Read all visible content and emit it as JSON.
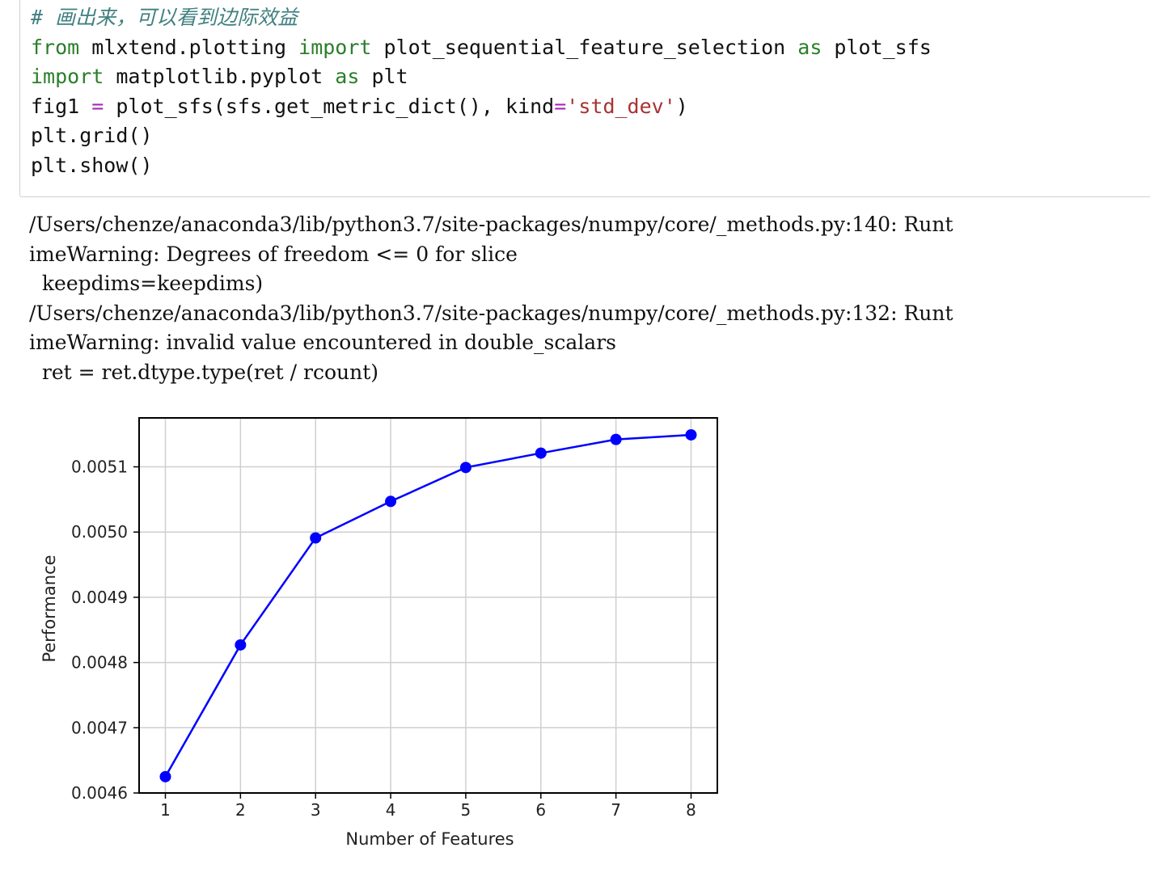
{
  "code_cell": {
    "lines": [
      [
        {
          "t": "# 画出来，可以看到边际效益",
          "c": "comment"
        }
      ],
      [
        {
          "t": "from",
          "c": "kw"
        },
        {
          "t": " mlxtend.plotting ",
          "c": ""
        },
        {
          "t": "import",
          "c": "kw"
        },
        {
          "t": " plot_sequential_feature_selection ",
          "c": ""
        },
        {
          "t": "as",
          "c": "kw"
        },
        {
          "t": " plot_sfs",
          "c": ""
        }
      ],
      [
        {
          "t": "import",
          "c": "kw"
        },
        {
          "t": " matplotlib.pyplot ",
          "c": ""
        },
        {
          "t": "as",
          "c": "kw"
        },
        {
          "t": " plt",
          "c": ""
        }
      ],
      [
        {
          "t": "fig1 ",
          "c": ""
        },
        {
          "t": "=",
          "c": "op"
        },
        {
          "t": " plot_sfs(sfs.get_metric_dict(), kind",
          "c": ""
        },
        {
          "t": "=",
          "c": "op"
        },
        {
          "t": "'std_dev'",
          "c": "str"
        },
        {
          "t": ")",
          "c": ""
        }
      ],
      [
        {
          "t": "plt.grid()",
          "c": ""
        }
      ],
      [
        {
          "t": "plt.show()",
          "c": ""
        }
      ]
    ]
  },
  "output": {
    "lines": [
      "/Users/chenze/anaconda3/lib/python3.7/site-packages/numpy/core/_methods.py:140: Runt",
      "imeWarning: Degrees of freedom <= 0 for slice",
      "  keepdims=keepdims)",
      "/Users/chenze/anaconda3/lib/python3.7/site-packages/numpy/core/_methods.py:132: Runt",
      "imeWarning: invalid value encountered in double_scalars",
      "  ret = ret.dtype.type(ret / rcount)"
    ]
  },
  "chart_data": {
    "type": "line",
    "x": [
      1,
      2,
      3,
      4,
      5,
      6,
      7,
      8
    ],
    "series": [
      {
        "values": [
          0.004625,
          0.004827,
          0.004991,
          0.005047,
          0.005099,
          0.005121,
          0.005142,
          0.005149
        ]
      }
    ],
    "xlabel": "Number of Features",
    "ylabel": "Performance",
    "xticks": [
      "1",
      "2",
      "3",
      "4",
      "5",
      "6",
      "7",
      "8"
    ],
    "yticks": [
      "0.0046",
      "0.0047",
      "0.0048",
      "0.0049",
      "0.0050",
      "0.0051"
    ],
    "ytick_values": [
      0.0046,
      0.0047,
      0.0048,
      0.0049,
      0.005,
      0.0051
    ],
    "xlim": [
      0.65,
      8.35
    ],
    "ylim": [
      0.0046,
      0.005175
    ],
    "grid": true,
    "line_color": "#0000ff"
  }
}
